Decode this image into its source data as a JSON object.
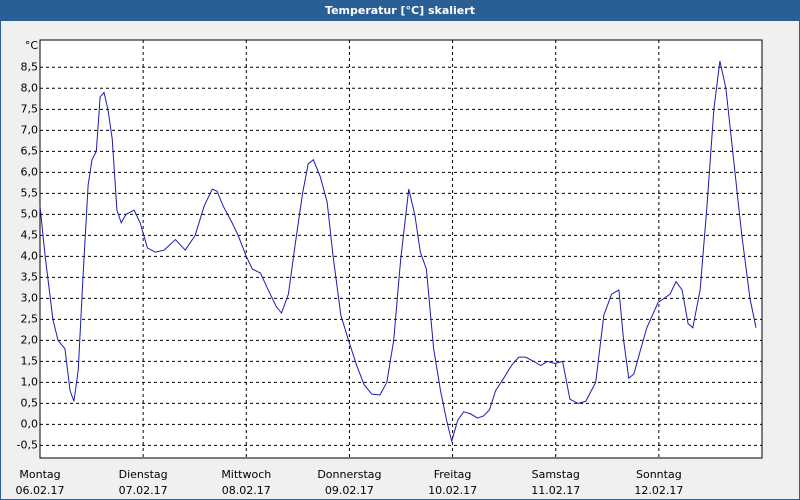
{
  "chart_data": {
    "type": "line",
    "title": "Temperatur [°C] skaliert",
    "y_label": "°C",
    "xlim": [
      0,
      168
    ],
    "ylim": [
      -0.8,
      9.15
    ],
    "xticks": [
      {
        "value": 0,
        "label": "Montag",
        "sublabel": "06.02.17"
      },
      {
        "value": 24,
        "label": "Dienstag",
        "sublabel": "07.02.17"
      },
      {
        "value": 48,
        "label": "Mittwoch",
        "sublabel": "08.02.17"
      },
      {
        "value": 72,
        "label": "Donnerstag",
        "sublabel": "09.02.17"
      },
      {
        "value": 96,
        "label": "Freitag",
        "sublabel": "10.02.17"
      },
      {
        "value": 120,
        "label": "Samstag",
        "sublabel": "11.02.17"
      },
      {
        "value": 144,
        "label": "Sonntag",
        "sublabel": "12.02.17"
      }
    ],
    "yticks": [
      {
        "value": -0.5,
        "label": "-0,5"
      },
      {
        "value": 0,
        "label": "0,0"
      },
      {
        "value": 0.5,
        "label": "0,5"
      },
      {
        "value": 1,
        "label": "1,0"
      },
      {
        "value": 1.5,
        "label": "1,5"
      },
      {
        "value": 2,
        "label": "2,0"
      },
      {
        "value": 2.5,
        "label": "2,5"
      },
      {
        "value": 3,
        "label": "3,0"
      },
      {
        "value": 3.5,
        "label": "3,5"
      },
      {
        "value": 4,
        "label": "4,0"
      },
      {
        "value": 4.5,
        "label": "4,5"
      },
      {
        "value": 5,
        "label": "5,0"
      },
      {
        "value": 5.5,
        "label": "5,5"
      },
      {
        "value": 6,
        "label": "6,0"
      },
      {
        "value": 6.5,
        "label": "6,5"
      },
      {
        "value": 7,
        "label": "7,0"
      },
      {
        "value": 7.5,
        "label": "7,5"
      },
      {
        "value": 8,
        "label": "8,0"
      },
      {
        "value": 8.5,
        "label": "8,5"
      }
    ],
    "grid": true,
    "color": "#1c1cb0",
    "x": [
      0,
      1.2,
      3,
      4.2,
      5.8,
      7,
      7.9,
      8.9,
      10,
      11.2,
      12.1,
      13.1,
      14,
      14.9,
      15.8,
      16.8,
      17.9,
      18.9,
      20,
      21.9,
      23.3,
      25,
      26.8,
      28.9,
      31.5,
      33.8,
      36.1,
      38.2,
      40.1,
      41.2,
      42.6,
      44.7,
      46.1,
      48,
      49.4,
      51.3,
      53.1,
      55,
      56.2,
      57.8,
      59.4,
      61.1,
      62.4,
      63.6,
      65.2,
      66.8,
      68.2,
      70,
      71.8,
      73.7,
      75.4,
      77.2,
      79.1,
      80.7,
      82.3,
      83.9,
      85.8,
      87.2,
      88.5,
      89.9,
      91.6,
      93.2,
      94.6,
      95.8,
      97.2,
      98.6,
      100.2,
      101.8,
      103.2,
      104.6,
      106,
      107.9,
      109.7,
      111.4,
      113,
      114.9,
      116.5,
      118.1,
      119.8,
      121.6,
      123.3,
      125.2,
      127,
      129.3,
      131.2,
      133,
      134.7,
      135.8,
      137,
      138.2,
      139.8,
      141.2,
      143.8,
      145.2,
      146.6,
      148,
      149.4,
      150.8,
      151.9,
      153.6,
      155.2,
      156.8,
      158.2,
      159.6,
      161.5,
      163.3,
      165.2,
      166.6
    ],
    "series": [
      {
        "name": "Temperatur",
        "color": "#1c1cb0",
        "values": [
          5.2,
          4,
          2.5,
          2,
          1.8,
          0.8,
          0.55,
          1.3,
          3.5,
          5.7,
          6.3,
          6.5,
          7.8,
          7.9,
          7.5,
          6.8,
          5.1,
          4.8,
          5,
          5.1,
          4.8,
          4.2,
          4.1,
          4.15,
          4.4,
          4.15,
          4.5,
          5.2,
          5.6,
          5.55,
          5.2,
          4.8,
          4.5,
          4,
          3.7,
          3.6,
          3.2,
          2.8,
          2.65,
          3.1,
          4.3,
          5.5,
          6.2,
          6.3,
          5.9,
          5.3,
          4,
          2.6,
          2,
          1.4,
          0.95,
          0.72,
          0.7,
          1,
          2,
          3.9,
          5.6,
          5,
          4.1,
          3.7,
          1.8,
          0.8,
          0.1,
          -0.4,
          0.1,
          0.3,
          0.25,
          0.15,
          0.2,
          0.35,
          0.8,
          1.1,
          1.4,
          1.6,
          1.6,
          1.5,
          1.4,
          1.5,
          1.45,
          1.5,
          0.6,
          0.5,
          0.55,
          1,
          2.6,
          3.1,
          3.2,
          2,
          1.1,
          1.2,
          1.8,
          2.3,
          2.9,
          3,
          3.1,
          3.4,
          3.2,
          2.4,
          2.3,
          3.2,
          5.2,
          7.5,
          8.65,
          8,
          6.2,
          4.5,
          3,
          2.3
        ]
      }
    ]
  }
}
